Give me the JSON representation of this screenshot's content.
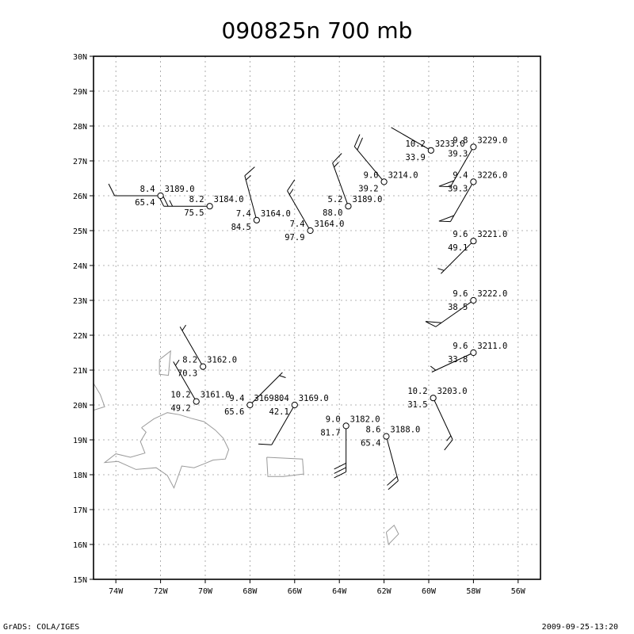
{
  "title": "090825n 700 mb",
  "footer": {
    "left": "GrADS: COLA/IGES",
    "right": "2009-09-25-13:20"
  },
  "map": {
    "lon_range": [
      -75,
      -55
    ],
    "lat_range": [
      15,
      30
    ],
    "grid": true,
    "lon_ticks": [
      {
        "lon": -74,
        "label": "74W"
      },
      {
        "lon": -72,
        "label": "72W"
      },
      {
        "lon": -70,
        "label": "70W"
      },
      {
        "lon": -68,
        "label": "68W"
      },
      {
        "lon": -66,
        "label": "66W"
      },
      {
        "lon": -64,
        "label": "64W"
      },
      {
        "lon": -62,
        "label": "62W"
      },
      {
        "lon": -60,
        "label": "60W"
      },
      {
        "lon": -58,
        "label": "58W"
      },
      {
        "lon": -56,
        "label": "56W"
      }
    ],
    "lat_ticks": [
      {
        "lat": 15,
        "label": "15N"
      },
      {
        "lat": 16,
        "label": "16N"
      },
      {
        "lat": 17,
        "label": "17N"
      },
      {
        "lat": 18,
        "label": "18N"
      },
      {
        "lat": 19,
        "label": "19N"
      },
      {
        "lat": 20,
        "label": "20N"
      },
      {
        "lat": 21,
        "label": "21N"
      },
      {
        "lat": 22,
        "label": "22N"
      },
      {
        "lat": 23,
        "label": "23N"
      },
      {
        "lat": 24,
        "label": "24N"
      },
      {
        "lat": 25,
        "label": "25N"
      },
      {
        "lat": 26,
        "label": "26N"
      },
      {
        "lat": 27,
        "label": "27N"
      },
      {
        "lat": 28,
        "label": "28N"
      },
      {
        "lat": 29,
        "label": "29N"
      },
      {
        "lat": 30,
        "label": "30N"
      }
    ],
    "coastlines": [
      {
        "name": "hispaniola",
        "points": [
          [
            -72.85,
            19.35
          ],
          [
            -72.3,
            19.6
          ],
          [
            -71.7,
            19.78
          ],
          [
            -71.15,
            19.72
          ],
          [
            -70.65,
            19.62
          ],
          [
            -70.05,
            19.52
          ],
          [
            -69.55,
            19.28
          ],
          [
            -69.2,
            19.05
          ],
          [
            -68.95,
            18.72
          ],
          [
            -69.1,
            18.45
          ],
          [
            -69.65,
            18.42
          ],
          [
            -70.1,
            18.3
          ],
          [
            -70.5,
            18.2
          ],
          [
            -71.05,
            18.25
          ],
          [
            -71.4,
            17.62
          ],
          [
            -71.7,
            17.98
          ],
          [
            -72.2,
            18.2
          ],
          [
            -73.1,
            18.15
          ],
          [
            -73.9,
            18.38
          ],
          [
            -74.5,
            18.35
          ],
          [
            -74.0,
            18.6
          ],
          [
            -73.35,
            18.5
          ],
          [
            -72.7,
            18.62
          ],
          [
            -72.9,
            18.95
          ],
          [
            -72.65,
            19.22
          ],
          [
            -72.85,
            19.35
          ]
        ]
      },
      {
        "name": "puerto-rico",
        "points": [
          [
            -67.25,
            18.5
          ],
          [
            -65.65,
            18.45
          ],
          [
            -65.6,
            18.02
          ],
          [
            -66.5,
            17.95
          ],
          [
            -67.2,
            17.95
          ],
          [
            -67.25,
            18.5
          ]
        ]
      },
      {
        "name": "turks-caicos",
        "points": [
          [
            -72.05,
            21.3
          ],
          [
            -71.55,
            21.55
          ],
          [
            -71.65,
            20.85
          ],
          [
            -72.05,
            20.88
          ],
          [
            -72.05,
            21.3
          ]
        ]
      },
      {
        "name": "cuba-tip",
        "points": [
          [
            -75.0,
            20.62
          ],
          [
            -74.7,
            20.3
          ],
          [
            -74.5,
            19.95
          ],
          [
            -75.0,
            19.85
          ]
        ]
      },
      {
        "name": "virgin-is",
        "points": [
          [
            -61.9,
            16.35
          ],
          [
            -61.55,
            16.55
          ],
          [
            -61.35,
            16.3
          ],
          [
            -61.8,
            16.0
          ],
          [
            -61.9,
            16.35
          ]
        ]
      }
    ]
  },
  "observations": [
    {
      "id": "s01",
      "lon": -72.0,
      "lat": 26.0,
      "t": "8.4",
      "h": "65.4",
      "z": "3189.0",
      "wind": {
        "dir": 270,
        "kt": 10
      }
    },
    {
      "id": "s02",
      "lon": -69.8,
      "lat": 25.7,
      "t": "8.2",
      "h": "75.5",
      "z": "3184.0",
      "wind": {
        "dir": 270,
        "kt": 25
      }
    },
    {
      "id": "s03",
      "lon": -67.7,
      "lat": 25.3,
      "t": "7.4",
      "h": "84.5",
      "z": "3164.0",
      "wind": {
        "dir": 345,
        "kt": 15
      }
    },
    {
      "id": "s04",
      "lon": -65.3,
      "lat": 25.0,
      "t": "7.4",
      "h": "97.9",
      "z": "3164.0",
      "wind": {
        "dir": 330,
        "kt": 15
      }
    },
    {
      "id": "s05",
      "lon": -63.6,
      "lat": 25.7,
      "t": "5.2",
      "h": "88.0",
      "z": "3189.0",
      "wind": {
        "dir": 340,
        "kt": 15
      }
    },
    {
      "id": "s06",
      "lon": -62.0,
      "lat": 26.4,
      "t": "9.0",
      "h": "39.2",
      "z": "3214.0",
      "wind": {
        "dir": 320,
        "kt": 20
      }
    },
    {
      "id": "s07",
      "lon": -59.9,
      "lat": 27.3,
      "t": "10.2",
      "h": "33.9",
      "z": "3233.0",
      "wind": {
        "dir": 300,
        "kt": 0
      }
    },
    {
      "id": "s08",
      "lon": -58.0,
      "lat": 27.4,
      "t": "9.8",
      "h": "39.3",
      "z": "3229.0",
      "wind": {
        "dir": 210,
        "kt": 50
      }
    },
    {
      "id": "s09",
      "lon": -58.0,
      "lat": 26.4,
      "t": "9.4",
      "h": "39.3",
      "z": "3226.0",
      "wind": {
        "dir": 210,
        "kt": 50
      }
    },
    {
      "id": "s10",
      "lon": -58.0,
      "lat": 24.7,
      "t": "9.6",
      "h": "49.1",
      "z": "3221.0",
      "wind": {
        "dir": 225,
        "kt": 5
      }
    },
    {
      "id": "s11",
      "lon": -58.0,
      "lat": 23.0,
      "t": "9.6",
      "h": "38.5",
      "z": "3222.0",
      "wind": {
        "dir": 235,
        "kt": 50
      }
    },
    {
      "id": "s12",
      "lon": -58.0,
      "lat": 21.5,
      "t": "9.6",
      "h": "33.8",
      "z": "3211.0",
      "wind": {
        "dir": 245,
        "kt": 5
      }
    },
    {
      "id": "s13",
      "lon": -70.1,
      "lat": 21.1,
      "t": "8.2",
      "h": "70.3",
      "z": "3162.0",
      "wind": {
        "dir": 330,
        "kt": 5
      }
    },
    {
      "id": "s14",
      "lon": -70.4,
      "lat": 20.1,
      "t": "10.2",
      "h": "49.2",
      "z": "3161.0",
      "wind": {
        "dir": 330,
        "kt": 5
      }
    },
    {
      "id": "s15",
      "lon": -68.0,
      "lat": 20.0,
      "t": "9.4",
      "h": "65.6",
      "z": "3169.0",
      "wind": {
        "dir": 45,
        "kt": 5
      }
    },
    {
      "id": "s16",
      "lon": -66.0,
      "lat": 20.0,
      "t": "8.4",
      "h": "42.1",
      "z": "3169.0",
      "wind": {
        "dir": 210,
        "kt": 10
      }
    },
    {
      "id": "s17",
      "lon": -63.7,
      "lat": 19.4,
      "t": "9.0",
      "h": "81.7",
      "z": "3182.0",
      "wind": {
        "dir": 180,
        "kt": 30
      }
    },
    {
      "id": "s18",
      "lon": -61.9,
      "lat": 19.1,
      "t": "8.6",
      "h": "65.4",
      "z": "3188.0",
      "wind": {
        "dir": 165,
        "kt": 20
      }
    },
    {
      "id": "s19",
      "lon": -59.8,
      "lat": 20.2,
      "t": "10.2",
      "h": "31.5",
      "z": "3203.0",
      "wind": {
        "dir": 155,
        "kt": 15
      }
    }
  ]
}
